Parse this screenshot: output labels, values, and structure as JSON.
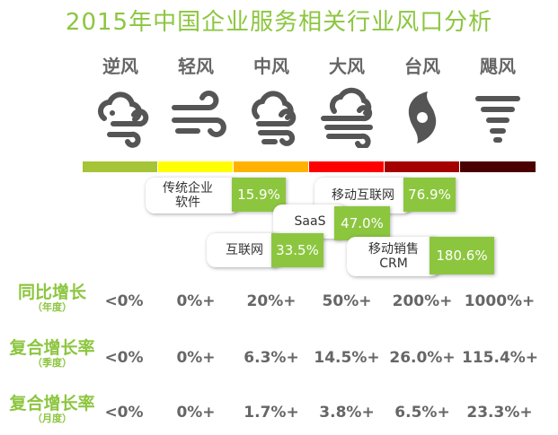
{
  "title": "2015年中国企业服务相关行业风口分析",
  "columns": [
    "逆风",
    "轻风",
    "中风",
    "大风",
    "台风",
    "飓风"
  ],
  "colors": {
    "accent": "#8cc63f",
    "scale": [
      "#a6c437",
      "#ffff00",
      "#ffb300",
      "#ff0000",
      "#a50000",
      "#4a0000"
    ]
  },
  "icons": [
    "cloud-wind-icon",
    "wind-icon",
    "cloud-wind-icon",
    "cloud-storm-wind-icon",
    "typhoon-icon",
    "tornado-icon"
  ],
  "industries": [
    {
      "name": "传统企业软件",
      "value": "15.9%"
    },
    {
      "name": "移动互联网",
      "value": "76.9%"
    },
    {
      "name": "SaaS",
      "value": "47.0%"
    },
    {
      "name": "互联网",
      "value": "33.5%"
    },
    {
      "name": "移动销售CRM",
      "value": "180.6%"
    }
  ],
  "rows": [
    {
      "label": "同比增长",
      "sub": "（年度）",
      "values": [
        "<0%",
        "0%+",
        "20%+",
        "50%+",
        "200%+",
        "1000%+"
      ]
    },
    {
      "label": "复合增长率",
      "sub": "（季度）",
      "values": [
        "<0%",
        "0%+",
        "6.3%+",
        "14.5%+",
        "26.0%+",
        "115.4%+"
      ]
    },
    {
      "label": "复合增长率",
      "sub": "（月度）",
      "values": [
        "<0%",
        "0%+",
        "1.7%+",
        "3.8%+",
        "6.5%+",
        "23.3%+"
      ]
    }
  ]
}
